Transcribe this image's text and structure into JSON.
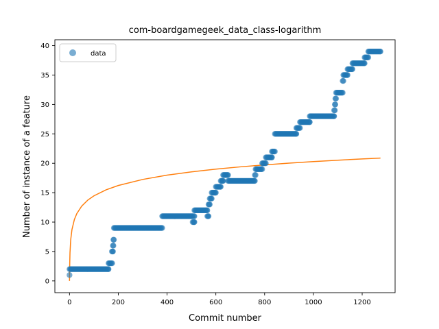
{
  "chart_data": {
    "type": "scatter",
    "title": "com-boardgamegeek_data_class-logarithm",
    "xlabel": "Commit number",
    "ylabel": "Number of instance of a feature",
    "xlim": [
      -60,
      1335
    ],
    "ylim": [
      -2,
      41
    ],
    "xticks": [
      0,
      200,
      400,
      600,
      800,
      1000,
      1200
    ],
    "yticks": [
      0,
      5,
      10,
      15,
      20,
      25,
      30,
      35,
      40
    ],
    "grid": false,
    "legend": {
      "position": "top-left",
      "entries": [
        "data"
      ]
    },
    "colors": {
      "data": "#1f77b4",
      "fit": "#ff7f0e"
    },
    "series": [
      {
        "name": "data",
        "kind": "scatter",
        "segments": [
          {
            "x": [
              0,
              0
            ],
            "y": 1
          },
          {
            "x": [
              0,
              160
            ],
            "y": 2
          },
          {
            "x": [
              160,
              175
            ],
            "y": 3
          },
          {
            "x": [
              174,
              178
            ],
            "y": 5
          },
          {
            "x": [
              178,
              180
            ],
            "y": 6
          },
          {
            "x": [
              180,
              182
            ],
            "y": 7
          },
          {
            "x": [
              182,
              380
            ],
            "y": 9
          },
          {
            "x": [
              380,
              505
            ],
            "y": 11
          },
          {
            "x": [
              505,
              512
            ],
            "y": 10
          },
          {
            "x": [
              510,
              512
            ],
            "y": 11
          },
          {
            "x": [
              512,
              565
            ],
            "y": 12
          },
          {
            "x": [
              565,
              570
            ],
            "y": 11
          },
          {
            "x": [
              570,
              575
            ],
            "y": 13
          },
          {
            "x": [
              575,
              583
            ],
            "y": 14
          },
          {
            "x": [
              583,
              600
            ],
            "y": 15
          },
          {
            "x": [
              600,
              620
            ],
            "y": 16
          },
          {
            "x": [
              620,
              630
            ],
            "y": 17
          },
          {
            "x": [
              630,
              650
            ],
            "y": 18
          },
          {
            "x": [
              650,
              760
            ],
            "y": 17
          },
          {
            "x": [
              760,
              763
            ],
            "y": 18
          },
          {
            "x": [
              763,
              790
            ],
            "y": 19
          },
          {
            "x": [
              790,
              805
            ],
            "y": 20
          },
          {
            "x": [
              805,
              830
            ],
            "y": 21
          },
          {
            "x": [
              830,
              842
            ],
            "y": 22
          },
          {
            "x": [
              842,
              930
            ],
            "y": 25
          },
          {
            "x": [
              930,
              945
            ],
            "y": 26
          },
          {
            "x": [
              945,
              985
            ],
            "y": 27
          },
          {
            "x": [
              985,
              1085
            ],
            "y": 28
          },
          {
            "x": [
              1085,
              1088
            ],
            "y": 29
          },
          {
            "x": [
              1088,
              1090
            ],
            "y": 30
          },
          {
            "x": [
              1090,
              1093
            ],
            "y": 31
          },
          {
            "x": [
              1093,
              1120
            ],
            "y": 32
          },
          {
            "x": [
              1120,
              1123
            ],
            "y": 34
          },
          {
            "x": [
              1123,
              1140
            ],
            "y": 35
          },
          {
            "x": [
              1140,
              1160
            ],
            "y": 36
          },
          {
            "x": [
              1160,
              1210
            ],
            "y": 37
          },
          {
            "x": [
              1210,
              1225
            ],
            "y": 38
          },
          {
            "x": [
              1225,
              1275
            ],
            "y": 39
          }
        ]
      },
      {
        "kind": "line",
        "x": [
          0,
          1,
          2,
          5,
          10,
          20,
          30,
          50,
          75,
          100,
          150,
          200,
          300,
          400,
          500,
          600,
          700,
          800,
          900,
          1000,
          1100,
          1200,
          1275
        ],
        "y": [
          0,
          3.02,
          4.79,
          7.03,
          8.72,
          10.44,
          11.45,
          12.71,
          13.74,
          14.46,
          15.49,
          16.22,
          17.25,
          17.98,
          18.54,
          19.0,
          19.39,
          19.72,
          20.02,
          20.28,
          20.52,
          20.74,
          20.89
        ]
      }
    ]
  }
}
